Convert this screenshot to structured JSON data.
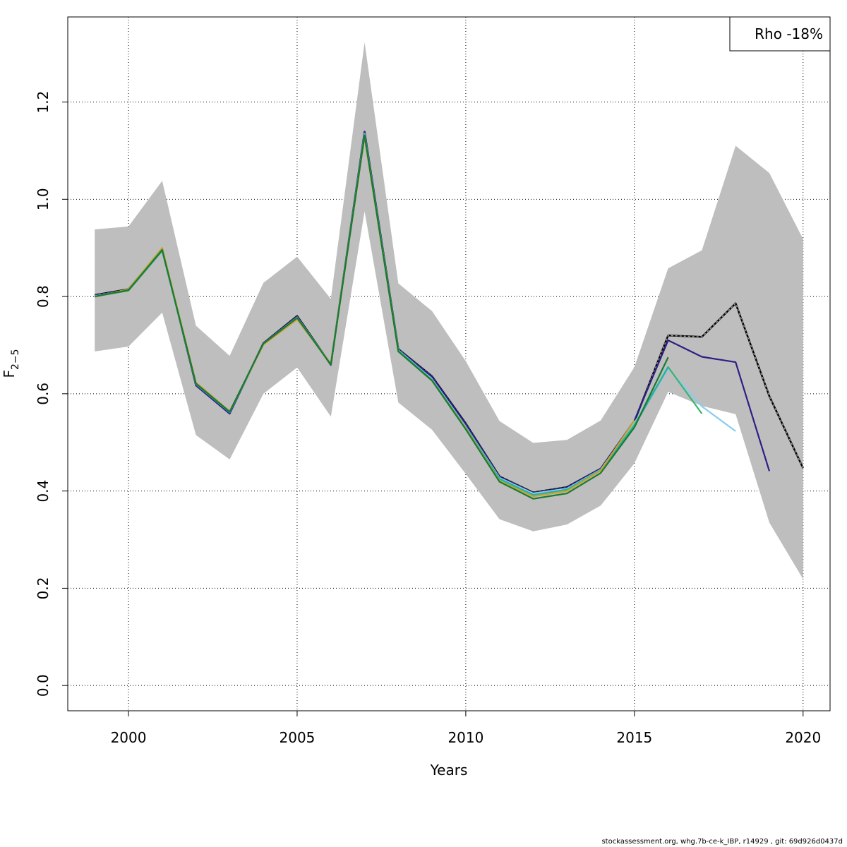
{
  "chart_data": {
    "type": "line",
    "xlabel": "Years",
    "ylabel_main": "F",
    "ylabel_sub": "2−5",
    "xlim": [
      1998.2,
      2020.8
    ],
    "ylim": [
      -0.052,
      1.375
    ],
    "x_ticks": [
      2000,
      2005,
      2010,
      2015,
      2020
    ],
    "y_ticks": [
      0.0,
      0.2,
      0.4,
      0.6,
      0.8,
      1.0,
      1.2
    ],
    "x_tick_labels": [
      "2000",
      "2005",
      "2010",
      "2015",
      "2020"
    ],
    "y_tick_labels": [
      "0.0",
      "0.2",
      "0.4",
      "0.6",
      "0.8",
      "1.0",
      "1.2"
    ],
    "grid": true,
    "legend": {
      "position": "top-right",
      "text": "Rho -18%"
    },
    "confidence_band": {
      "color": "#bebebe",
      "x": [
        1999,
        2000,
        2001,
        2002,
        2003,
        2004,
        2005,
        2006,
        2007,
        2008,
        2009,
        2010,
        2011,
        2012,
        2013,
        2014,
        2015,
        2016,
        2017,
        2018,
        2019,
        2020
      ],
      "lower": [
        0.687,
        0.697,
        0.767,
        0.515,
        0.465,
        0.6,
        0.654,
        0.553,
        0.975,
        0.582,
        0.526,
        0.435,
        0.342,
        0.317,
        0.331,
        0.37,
        0.457,
        0.604,
        0.575,
        0.558,
        0.335,
        0.219
      ],
      "upper": [
        0.938,
        0.944,
        1.038,
        0.74,
        0.678,
        0.828,
        0.882,
        0.795,
        1.323,
        0.827,
        0.77,
        0.667,
        0.544,
        0.499,
        0.505,
        0.545,
        0.655,
        0.858,
        0.895,
        1.11,
        1.054,
        0.918
      ]
    },
    "series": [
      {
        "color": "#333333",
        "dashed": true,
        "x": [
          1999,
          2000,
          2001,
          2002,
          2003,
          2004,
          2005,
          2006,
          2007,
          2008,
          2009,
          2010,
          2011,
          2012,
          2013,
          2014,
          2015,
          2016,
          2017,
          2018,
          2019,
          2020
        ],
        "values": [
          0.803,
          0.815,
          0.898,
          0.618,
          0.56,
          0.704,
          0.76,
          0.66,
          1.139,
          0.692,
          0.636,
          0.539,
          0.43,
          0.397,
          0.408,
          0.446,
          0.543,
          0.72,
          0.717,
          0.786,
          0.595,
          0.447
        ]
      },
      {
        "color": "#2c1f86",
        "dashed": false,
        "x": [
          1999,
          2000,
          2001,
          2002,
          2003,
          2004,
          2005,
          2006,
          2007,
          2008,
          2009,
          2010,
          2011,
          2012,
          2013,
          2014,
          2015,
          2016,
          2017,
          2018,
          2019
        ],
        "values": [
          0.802,
          0.814,
          0.897,
          0.617,
          0.559,
          0.704,
          0.759,
          0.659,
          1.138,
          0.691,
          0.635,
          0.538,
          0.429,
          0.396,
          0.407,
          0.446,
          0.545,
          0.71,
          0.676,
          0.665,
          0.441
        ]
      },
      {
        "color": "#87ceeb",
        "dashed": false,
        "x": [
          1999,
          2000,
          2001,
          2002,
          2003,
          2004,
          2005,
          2006,
          2007,
          2008,
          2009,
          2010,
          2011,
          2012,
          2013,
          2014,
          2015,
          2016,
          2017,
          2018
        ],
        "values": [
          0.801,
          0.813,
          0.895,
          0.62,
          0.562,
          0.703,
          0.757,
          0.661,
          1.135,
          0.69,
          0.63,
          0.532,
          0.427,
          0.395,
          0.405,
          0.444,
          0.54,
          0.652,
          0.574,
          0.523
        ]
      },
      {
        "color": "#3cb371",
        "dashed": false,
        "x": [
          1999,
          2000,
          2001,
          2002,
          2003,
          2004,
          2005,
          2006,
          2007,
          2008,
          2009,
          2010,
          2011,
          2012,
          2013,
          2014,
          2015,
          2016,
          2017
        ],
        "values": [
          0.8,
          0.812,
          0.894,
          0.621,
          0.563,
          0.702,
          0.756,
          0.66,
          1.132,
          0.689,
          0.628,
          0.53,
          0.425,
          0.391,
          0.402,
          0.442,
          0.536,
          0.655,
          0.559
        ]
      },
      {
        "color": "#20b2aa",
        "dashed": false,
        "x": [
          1999,
          2000,
          2001,
          2002,
          2003,
          2004,
          2005,
          2006,
          2007,
          2008,
          2009,
          2010,
          2011,
          2012,
          2013,
          2014,
          2015,
          2016
        ],
        "values": [
          0.8,
          0.813,
          0.894,
          0.621,
          0.562,
          0.702,
          0.756,
          0.66,
          1.133,
          0.689,
          0.628,
          0.53,
          0.425,
          0.392,
          0.403,
          0.443,
          0.534,
          0.655
        ]
      },
      {
        "color": "#c8a32a",
        "dashed": false,
        "x": [
          1999,
          2000,
          2001,
          2002,
          2003,
          2004,
          2005,
          2006,
          2007,
          2008,
          2009,
          2010,
          2011,
          2012,
          2013,
          2014,
          2015
        ],
        "values": [
          0.799,
          0.815,
          0.9,
          0.623,
          0.564,
          0.701,
          0.753,
          0.662,
          1.128,
          0.687,
          0.627,
          0.529,
          0.421,
          0.389,
          0.4,
          0.442,
          0.545
        ]
      },
      {
        "color": "#1a7a30",
        "dashed": false,
        "x": [
          1999,
          2000,
          2001,
          2002,
          2003,
          2004,
          2005,
          2006,
          2007,
          2008,
          2009,
          2010,
          2011,
          2012,
          2013,
          2014,
          2015,
          2016
        ],
        "values": [
          0.8,
          0.813,
          0.896,
          0.621,
          0.563,
          0.703,
          0.756,
          0.66,
          1.131,
          0.687,
          0.627,
          0.527,
          0.419,
          0.384,
          0.395,
          0.437,
          0.531,
          0.675
        ]
      }
    ]
  },
  "footer": "stockassessment.org, whg.7b-ce-k_IBP, r14929 , git: 69d926d0437d"
}
